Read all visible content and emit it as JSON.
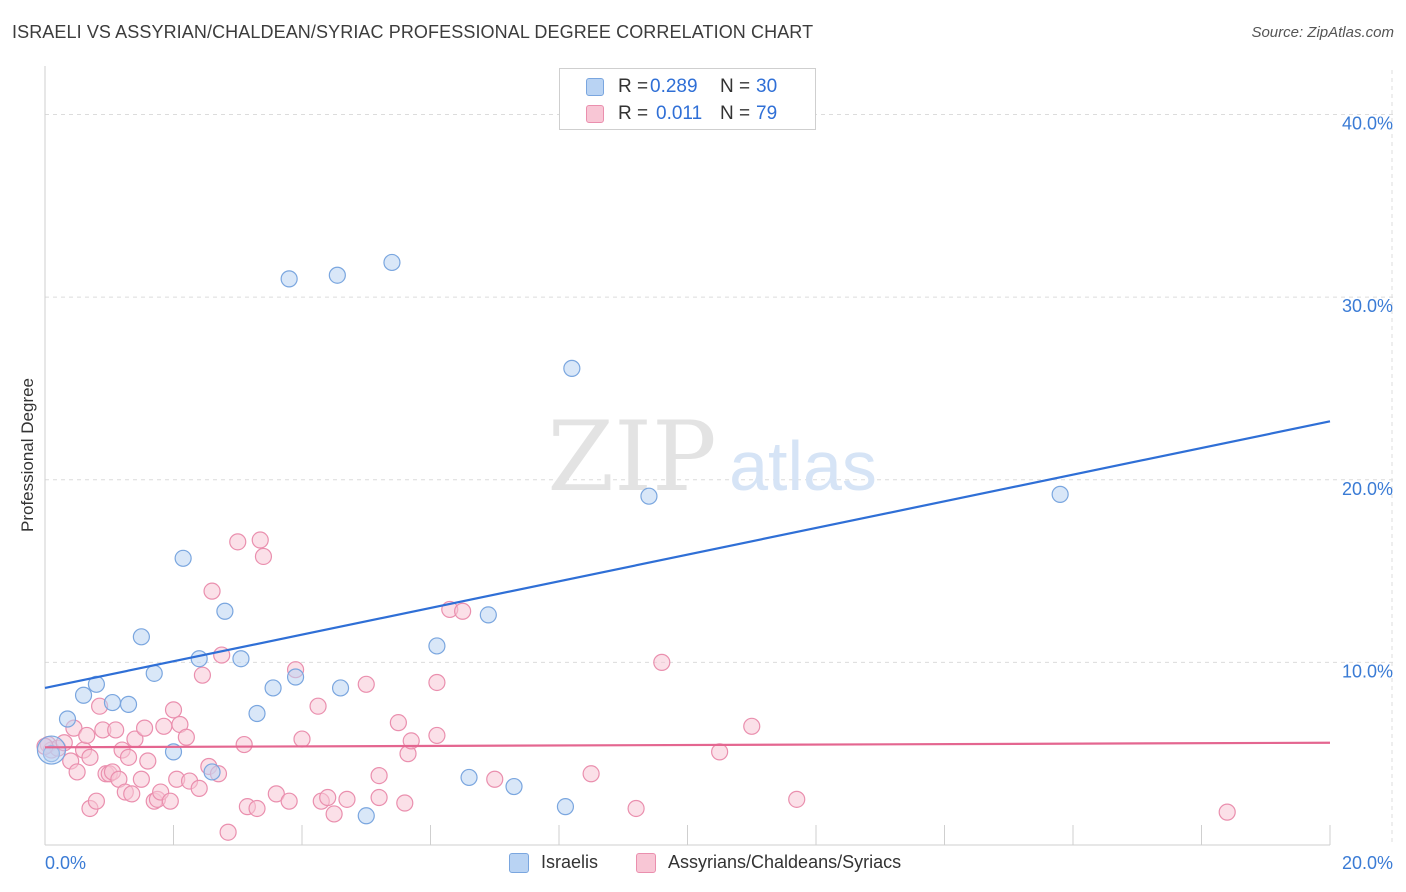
{
  "title": "ISRAELI VS ASSYRIAN/CHALDEAN/SYRIAC PROFESSIONAL DEGREE CORRELATION CHART",
  "source": "Source: ZipAtlas.com",
  "watermark": {
    "zip": "ZIP",
    "atlas": "atlas"
  },
  "legend": [
    {
      "r_label": "R =",
      "r_value": "0.289",
      "n_label": "N =",
      "n_value": "30"
    },
    {
      "r_label": "R =",
      "r_value": "0.011",
      "n_label": "N =",
      "n_value": "79"
    }
  ],
  "colors": {
    "blue_fill": "#b9d3f3",
    "blue_stroke": "#7aa6df",
    "blue_line": "#2f6fd6",
    "pink_fill": "#f8c6d5",
    "pink_stroke": "#ea8fae",
    "pink_line": "#e46690",
    "axis_text": "#3a7bd5",
    "grid": "#dcdcdc"
  },
  "chart_data": {
    "type": "scatter",
    "xlabel": "",
    "ylabel": "Professional Degree",
    "xlim": [
      0,
      20
    ],
    "ylim": [
      0,
      42
    ],
    "x_tick_labels": [
      "0.0%",
      "20.0%"
    ],
    "y_ticks": [
      10,
      20,
      30,
      40
    ],
    "y_tick_labels": [
      "10.0%",
      "20.0%",
      "30.0%",
      "40.0%"
    ],
    "series": [
      {
        "name": "Israelis",
        "color": "blue",
        "trend": {
          "x": [
            0,
            20
          ],
          "y": [
            8.6,
            23.2
          ]
        },
        "points": [
          [
            0.1,
            5.0
          ],
          [
            0.35,
            6.9
          ],
          [
            0.6,
            8.2
          ],
          [
            0.8,
            8.8
          ],
          [
            1.05,
            7.8
          ],
          [
            1.3,
            7.7
          ],
          [
            1.5,
            11.4
          ],
          [
            1.7,
            9.4
          ],
          [
            2.0,
            5.1
          ],
          [
            2.15,
            15.7
          ],
          [
            2.4,
            10.2
          ],
          [
            2.6,
            4.0
          ],
          [
            2.8,
            12.8
          ],
          [
            3.05,
            10.2
          ],
          [
            3.3,
            7.2
          ],
          [
            3.55,
            8.6
          ],
          [
            3.8,
            31.0
          ],
          [
            3.9,
            9.2
          ],
          [
            4.55,
            31.2
          ],
          [
            4.6,
            8.6
          ],
          [
            5.0,
            1.6
          ],
          [
            5.4,
            31.9
          ],
          [
            6.1,
            10.9
          ],
          [
            6.6,
            3.7
          ],
          [
            6.9,
            12.6
          ],
          [
            7.3,
            3.2
          ],
          [
            8.1,
            2.1
          ],
          [
            8.2,
            26.1
          ],
          [
            9.4,
            19.1
          ],
          [
            15.8,
            19.2
          ]
        ]
      },
      {
        "name": "Assyrians/Chaldeans/Syriacs",
        "color": "pink",
        "trend": {
          "x": [
            0,
            20
          ],
          "y": [
            5.35,
            5.6
          ]
        },
        "points": [
          [
            0.05,
            5.5
          ],
          [
            0.1,
            5.2
          ],
          [
            0.2,
            5.3
          ],
          [
            0.3,
            5.6
          ],
          [
            0.4,
            4.6
          ],
          [
            0.45,
            6.4
          ],
          [
            0.5,
            4.0
          ],
          [
            0.6,
            5.2
          ],
          [
            0.65,
            6.0
          ],
          [
            0.7,
            4.8
          ],
          [
            0.7,
            2.0
          ],
          [
            0.8,
            2.4
          ],
          [
            0.85,
            7.6
          ],
          [
            0.9,
            6.3
          ],
          [
            0.95,
            3.9
          ],
          [
            1.0,
            3.9
          ],
          [
            1.05,
            4.0
          ],
          [
            1.1,
            6.3
          ],
          [
            1.15,
            3.6
          ],
          [
            1.2,
            5.2
          ],
          [
            1.25,
            2.9
          ],
          [
            1.3,
            4.8
          ],
          [
            1.35,
            2.8
          ],
          [
            1.4,
            5.8
          ],
          [
            1.5,
            3.6
          ],
          [
            1.55,
            6.4
          ],
          [
            1.6,
            4.6
          ],
          [
            1.7,
            2.4
          ],
          [
            1.75,
            2.5
          ],
          [
            1.8,
            2.9
          ],
          [
            1.85,
            6.5
          ],
          [
            1.95,
            2.4
          ],
          [
            2.0,
            7.4
          ],
          [
            2.05,
            3.6
          ],
          [
            2.1,
            6.6
          ],
          [
            2.2,
            5.9
          ],
          [
            2.25,
            3.5
          ],
          [
            2.4,
            3.1
          ],
          [
            2.45,
            9.3
          ],
          [
            2.55,
            4.3
          ],
          [
            2.6,
            13.9
          ],
          [
            2.7,
            3.9
          ],
          [
            2.75,
            10.4
          ],
          [
            2.85,
            0.7
          ],
          [
            3.0,
            16.6
          ],
          [
            3.1,
            5.5
          ],
          [
            3.15,
            2.1
          ],
          [
            3.3,
            2.0
          ],
          [
            3.35,
            16.7
          ],
          [
            3.4,
            15.8
          ],
          [
            3.6,
            2.8
          ],
          [
            3.8,
            2.4
          ],
          [
            3.9,
            9.6
          ],
          [
            4.0,
            5.8
          ],
          [
            4.25,
            7.6
          ],
          [
            4.3,
            2.4
          ],
          [
            4.4,
            2.6
          ],
          [
            4.5,
            1.7
          ],
          [
            4.7,
            2.5
          ],
          [
            5.0,
            8.8
          ],
          [
            5.2,
            2.6
          ],
          [
            5.2,
            3.8
          ],
          [
            5.5,
            6.7
          ],
          [
            5.6,
            2.3
          ],
          [
            5.65,
            5.0
          ],
          [
            5.7,
            5.7
          ],
          [
            6.1,
            6.0
          ],
          [
            6.1,
            8.9
          ],
          [
            6.3,
            12.9
          ],
          [
            6.5,
            12.8
          ],
          [
            7.0,
            3.6
          ],
          [
            8.5,
            3.9
          ],
          [
            9.2,
            2.0
          ],
          [
            9.6,
            10.0
          ],
          [
            10.5,
            5.1
          ],
          [
            11.0,
            6.5
          ],
          [
            11.7,
            2.5
          ],
          [
            18.4,
            1.8
          ],
          [
            0.0,
            5.4
          ]
        ]
      }
    ]
  },
  "bottom_legend": [
    {
      "label": "Israelis"
    },
    {
      "label": "Assyrians/Chaldeans/Syriacs"
    }
  ]
}
